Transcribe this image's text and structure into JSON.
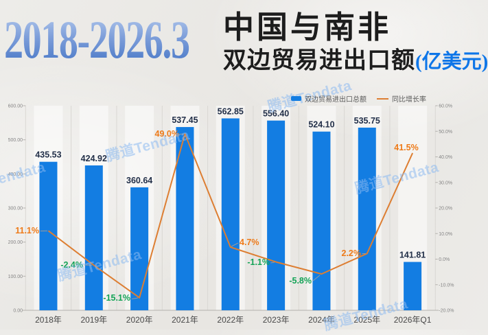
{
  "header": {
    "period": "2018-2026.3",
    "title_line1": "中国与南非",
    "title_line2": "双边贸易进出口额",
    "title_unit": "(亿美元)"
  },
  "legend": {
    "bar_label": "双边贸易进出口总额",
    "line_label": "同比增长率"
  },
  "watermark": "腾道Tendata",
  "colors": {
    "bar": "#137de2",
    "line": "#dd7e32",
    "label_positive": "#ee7a18",
    "label_negative": "#13a356",
    "bar_value_text": "#233049",
    "axis_text": "#858585",
    "category_text": "#474747",
    "grid": "#d9d7d3",
    "baseline": "#b3b1ad",
    "leader": "#9a9a9a",
    "band": "rgba(255,255,255,0.5)",
    "title_unit_blue": "#0e76e8"
  },
  "chart_data": {
    "type": "bar+line combo",
    "title": "2018-2026.3 中国与南非双边贸易进出口额(亿美元)",
    "categories": [
      "2018年",
      "2019年",
      "2020年",
      "2021年",
      "2022年",
      "2023年",
      "2024年",
      "2025年",
      "2026年Q1"
    ],
    "series": [
      {
        "name": "双边贸易进出口总额",
        "type": "bar",
        "axis": "left",
        "values": [
          435.53,
          424.92,
          360.64,
          537.45,
          562.85,
          556.4,
          524.1,
          535.75,
          141.81
        ]
      },
      {
        "name": "同比增长率",
        "type": "line",
        "axis": "right",
        "values": [
          11.1,
          -2.4,
          -15.1,
          49.0,
          4.7,
          -1.1,
          -5.8,
          2.2,
          41.5
        ]
      }
    ],
    "bar_value_labels": [
      "435.53",
      "424.92",
      "360.64",
      "537.45",
      "562.85",
      "556.40",
      "524.10",
      "535.75",
      "141.81"
    ],
    "line_point_labels": [
      "11.1%",
      "-2.4%",
      "-15.1%",
      "49.0%",
      "4.7%",
      "-1.1%",
      "-5.8%",
      "2.2%",
      "41.5%"
    ],
    "left_axis": {
      "min": 0,
      "max": 600,
      "ticks": [
        "600.00",
        "500.00",
        "400.00",
        "300.00",
        "200.00",
        "100.00",
        "0.00"
      ]
    },
    "right_axis": {
      "min": -20,
      "max": 60,
      "ticks": [
        "60.0%",
        "50.0%",
        "40.0%",
        "30.0%",
        "20.0%",
        "10.0%",
        "0.0%",
        "-10.0%",
        "-20.0%"
      ]
    },
    "grid": "vertical-only",
    "legend_position": "top-right"
  }
}
